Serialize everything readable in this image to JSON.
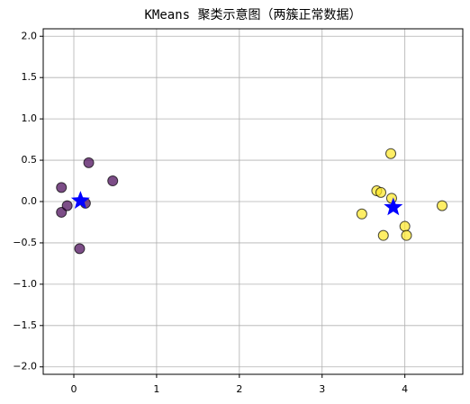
{
  "chart_data": {
    "type": "scatter",
    "title": "KMeans 聚类示意图（两簇正常数据）",
    "xlim": [
      -0.37,
      4.7
    ],
    "ylim": [
      -2.09,
      2.09
    ],
    "xticks": [
      0,
      1,
      2,
      3,
      4
    ],
    "yticks": [
      {
        "value": -2,
        "label": "−2.0"
      },
      {
        "value": -1.5,
        "label": "−1.5"
      },
      {
        "value": -1,
        "label": "−1.0"
      },
      {
        "value": -0.5,
        "label": "−0.5"
      },
      {
        "value": 0,
        "label": "0.0"
      },
      0.5,
      {
        "value": 1,
        "label": "1.0"
      },
      1.5,
      {
        "value": 2,
        "label": "2.0"
      }
    ],
    "grid": true,
    "series": [
      {
        "color": "#440154",
        "marker": "circle",
        "x": [
          -0.15,
          0.18,
          0.47,
          -0.15,
          -0.08,
          0.14,
          0.07
        ],
        "values": [
          0.17,
          0.47,
          0.25,
          -0.13,
          -0.05,
          -0.02,
          -0.57
        ]
      },
      {
        "color": "#fde725",
        "marker": "circle",
        "x": [
          3.83,
          3.66,
          3.71,
          3.84,
          3.48,
          3.74,
          4.0,
          4.02,
          4.45
        ],
        "values": [
          0.58,
          0.13,
          0.11,
          0.04,
          -0.15,
          -0.41,
          -0.3,
          -0.41,
          -0.05
        ]
      },
      {
        "color": "#0000ff",
        "marker": "star",
        "x": [
          0.08,
          3.86
        ],
        "values": [
          0.01,
          -0.07
        ]
      }
    ]
  }
}
